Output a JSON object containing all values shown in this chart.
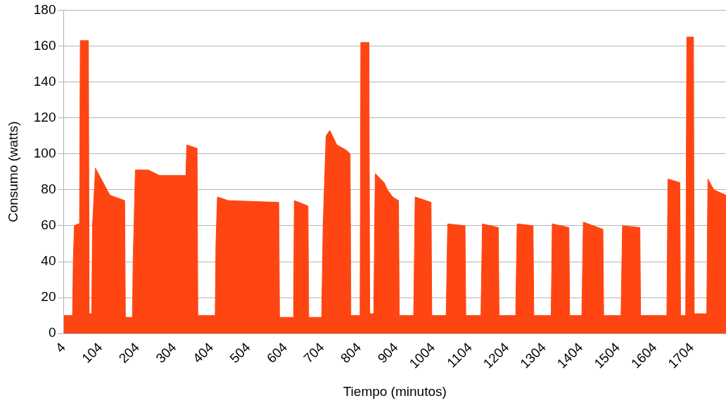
{
  "chart_data": {
    "type": "area",
    "xlabel": "Tiempo (minutos)",
    "ylabel": "Consumo (watts)",
    "color": "#ff4511",
    "x": [
      4,
      28,
      30,
      33,
      43,
      47,
      49,
      71,
      73,
      80,
      82,
      90,
      129,
      169,
      171,
      190,
      192,
      198,
      233,
      263,
      335,
      337,
      365,
      367,
      414,
      416,
      420,
      449,
      586,
      588,
      626,
      628,
      665,
      667,
      702,
      706,
      714,
      724,
      743,
      769,
      779,
      781,
      806,
      808,
      830,
      832,
      843,
      847,
      871,
      880,
      894,
      910,
      912,
      951,
      955,
      998,
      1000,
      1039,
      1043,
      1090,
      1092,
      1133,
      1137,
      1180,
      1182,
      1227,
      1231,
      1274,
      1276,
      1323,
      1326,
      1371,
      1373,
      1406,
      1410,
      1463,
      1465,
      1512,
      1516,
      1563,
      1565,
      1636,
      1639,
      1671,
      1673,
      1687,
      1690,
      1708,
      1710,
      1744,
      1747,
      1763,
      1796
    ],
    "values": [
      10,
      10,
      40,
      60,
      61,
      61,
      163,
      163,
      11,
      11,
      60,
      92,
      77,
      74,
      9,
      9,
      40,
      91,
      91,
      88,
      88,
      105,
      103,
      10,
      10,
      50,
      76,
      74,
      73,
      9,
      9,
      74,
      71,
      9,
      9,
      60,
      110,
      113,
      105,
      102,
      100,
      10,
      10,
      162,
      162,
      11,
      11,
      89,
      84,
      80,
      76,
      74,
      10,
      10,
      76,
      73,
      10,
      10,
      61,
      60,
      10,
      10,
      61,
      59,
      10,
      10,
      61,
      60,
      10,
      10,
      61,
      59,
      10,
      10,
      62,
      58,
      10,
      10,
      60,
      59,
      10,
      10,
      86,
      84,
      10,
      10,
      165,
      165,
      11,
      11,
      86,
      80,
      77
    ],
    "xlim": [
      4,
      1796
    ],
    "xticks": [
      4,
      104,
      204,
      304,
      404,
      504,
      604,
      704,
      804,
      904,
      1004,
      1104,
      1204,
      1304,
      1404,
      1504,
      1604,
      1704
    ],
    "ylim": [
      0,
      180
    ],
    "yticks": [
      0,
      20,
      40,
      60,
      80,
      100,
      120,
      140,
      160,
      180
    ],
    "grid": "y",
    "legend": false
  }
}
